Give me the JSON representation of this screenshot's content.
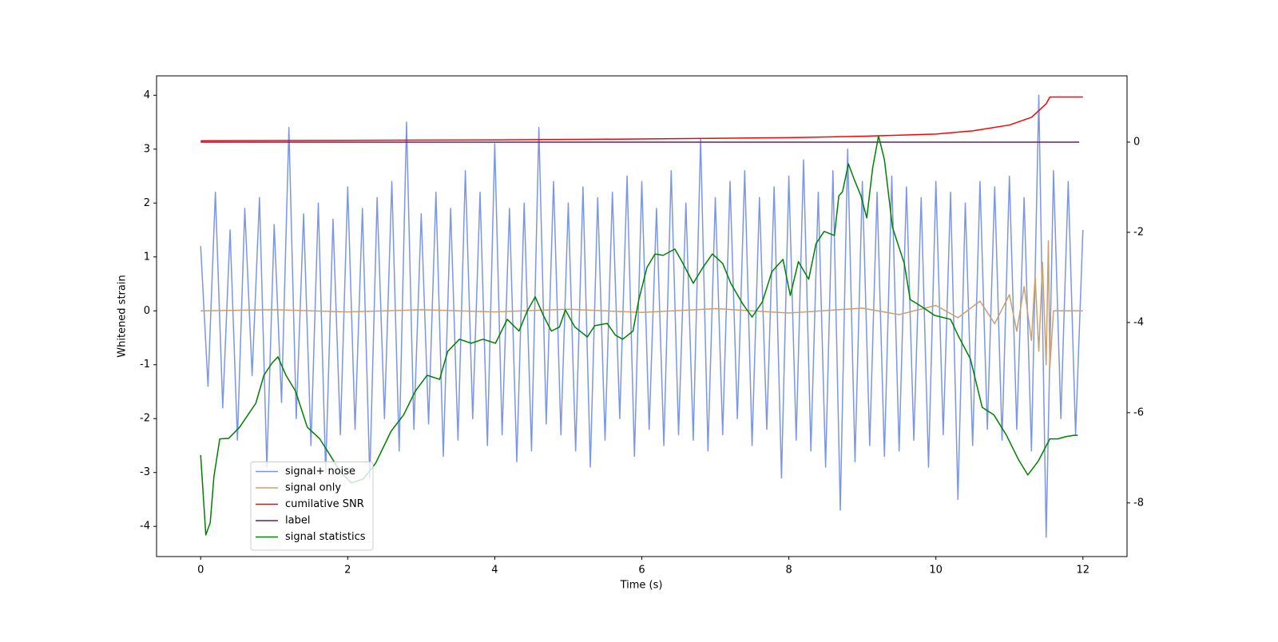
{
  "chart_data": {
    "type": "line",
    "xlabel": "Time (s)",
    "ylabel": "Whitened strain",
    "xlim": [
      -0.6,
      12.6
    ],
    "xticks": [
      0,
      2,
      4,
      6,
      8,
      10,
      12
    ],
    "ylim": [
      -4.56,
      4.36
    ],
    "yticks": [
      -4,
      -3,
      -2,
      -1,
      0,
      1,
      2,
      3,
      4
    ],
    "y2lim": [
      -9.19,
      1.47
    ],
    "y2ticks": [
      -8,
      -6,
      -4,
      -2,
      0
    ],
    "legend": "lower left",
    "series": [
      {
        "name": "signal+ noise",
        "color": "#7b96e8",
        "axis": "y",
        "x": [
          0,
          0.1,
          0.2,
          0.3,
          0.4,
          0.5,
          0.6,
          0.7,
          0.8,
          0.9,
          1,
          1.1,
          1.2,
          1.3,
          1.4,
          1.5,
          1.6,
          1.7,
          1.8,
          1.9,
          2,
          2.1,
          2.2,
          2.3,
          2.4,
          2.5,
          2.6,
          2.7,
          2.8,
          2.9,
          3,
          3.1,
          3.2,
          3.3,
          3.4,
          3.5,
          3.6,
          3.7,
          3.8,
          3.9,
          4,
          4.1,
          4.2,
          4.3,
          4.4,
          4.5,
          4.6,
          4.7,
          4.8,
          4.9,
          5,
          5.1,
          5.2,
          5.3,
          5.4,
          5.5,
          5.6,
          5.7,
          5.8,
          5.9,
          6,
          6.1,
          6.2,
          6.3,
          6.4,
          6.5,
          6.6,
          6.7,
          6.8,
          6.9,
          7,
          7.1,
          7.2,
          7.3,
          7.4,
          7.5,
          7.6,
          7.7,
          7.8,
          7.9,
          8,
          8.1,
          8.2,
          8.3,
          8.4,
          8.5,
          8.6,
          8.7,
          8.8,
          8.9,
          9,
          9.1,
          9.2,
          9.3,
          9.4,
          9.5,
          9.6,
          9.7,
          9.8,
          9.9,
          10,
          10.1,
          10.2,
          10.3,
          10.4,
          10.5,
          10.6,
          10.7,
          10.8,
          10.9,
          11,
          11.1,
          11.2,
          11.3,
          11.4,
          11.5,
          11.6,
          11.7,
          11.8,
          11.9,
          12
        ],
        "values": [
          1.2,
          -1.4,
          2.2,
          -1.8,
          1.5,
          -2.4,
          1.9,
          -1.2,
          2.1,
          -2.9,
          1.6,
          -1.7,
          3.4,
          -2.0,
          1.8,
          -2.5,
          2.0,
          -3.0,
          1.7,
          -2.3,
          2.3,
          -2.2,
          1.9,
          -3.1,
          2.1,
          -2.0,
          2.4,
          -2.6,
          3.5,
          -2.2,
          1.8,
          -2.1,
          2.2,
          -2.7,
          1.9,
          -2.4,
          2.6,
          -2.0,
          2.2,
          -2.5,
          3.1,
          -2.3,
          1.9,
          -2.8,
          2.0,
          -2.6,
          3.4,
          -2.1,
          2.4,
          -2.3,
          2.0,
          -2.6,
          2.3,
          -2.9,
          2.1,
          -2.4,
          2.2,
          -2.0,
          2.5,
          -2.7,
          2.4,
          -2.2,
          1.9,
          -2.5,
          2.6,
          -2.3,
          2.0,
          -2.4,
          3.2,
          -2.6,
          2.1,
          -2.3,
          2.4,
          -2.0,
          2.6,
          -2.5,
          2.1,
          -2.2,
          2.3,
          -3.1,
          2.5,
          -2.4,
          2.8,
          -2.6,
          2.2,
          -2.9,
          2.6,
          -3.7,
          3.0,
          -2.8,
          2.4,
          -2.5,
          2.2,
          -2.7,
          2.5,
          -2.6,
          2.3,
          -2.4,
          2.1,
          -2.9,
          2.4,
          -2.3,
          2.2,
          -3.5,
          2.0,
          -2.5,
          2.4,
          -2.2,
          2.3,
          -2.4,
          2.5,
          -2.2,
          2.1,
          -2.6,
          4.0,
          -4.2,
          2.6,
          -2.0,
          2.4,
          -2.3,
          1.5
        ]
      },
      {
        "name": "signal only",
        "color": "#c9a06e",
        "axis": "y",
        "x": [
          0,
          1,
          2,
          3,
          4,
          5,
          6,
          7,
          8,
          9,
          9.5,
          10,
          10.3,
          10.6,
          10.8,
          11.0,
          11.1,
          11.2,
          11.3,
          11.35,
          11.4,
          11.45,
          11.5,
          11.53,
          11.55,
          11.6,
          12
        ],
        "values": [
          0,
          0.02,
          -0.02,
          0.02,
          -0.02,
          0.03,
          -0.03,
          0.04,
          -0.04,
          0.05,
          -0.07,
          0.1,
          -0.13,
          0.18,
          -0.24,
          0.3,
          -0.38,
          0.45,
          -0.55,
          0.65,
          -0.75,
          0.9,
          -1.0,
          1.3,
          -1.05,
          0,
          0
        ]
      },
      {
        "name": "cumilative SNR",
        "color": "#ff0000",
        "axis": "y2",
        "x": [
          0,
          2,
          4,
          6,
          8,
          9,
          10,
          10.5,
          11,
          11.3,
          11.5,
          11.55,
          12
        ],
        "values": [
          0.03,
          0.04,
          0.05,
          0.07,
          0.1,
          0.13,
          0.18,
          0.25,
          0.38,
          0.55,
          0.85,
          1.0,
          1.0
        ]
      },
      {
        "name": "label",
        "color": "#6a1b6e",
        "axis": "y2",
        "x": [
          0,
          11.95
        ],
        "values": [
          0,
          0
        ]
      },
      {
        "name": "signal statistics",
        "color": "#008000",
        "axis": "y2",
        "x": [
          0,
          0.07,
          0.13,
          0.18,
          0.26,
          0.38,
          0.53,
          0.75,
          0.86,
          0.97,
          1.05,
          1.16,
          1.29,
          1.45,
          1.62,
          1.76,
          1.89,
          2.05,
          2.21,
          2.38,
          2.59,
          2.76,
          2.92,
          3.08,
          3.25,
          3.36,
          3.52,
          3.68,
          3.84,
          4.01,
          4.17,
          4.33,
          4.44,
          4.55,
          4.66,
          4.77,
          4.88,
          4.96,
          5.09,
          5.26,
          5.36,
          5.53,
          5.64,
          5.74,
          5.88,
          5.96,
          6.07,
          6.18,
          6.29,
          6.45,
          6.56,
          6.7,
          6.83,
          6.96,
          7.1,
          7.21,
          7.37,
          7.5,
          7.64,
          7.77,
          7.92,
          8.02,
          8.13,
          8.27,
          8.37,
          8.48,
          8.62,
          8.68,
          8.73,
          8.81,
          8.89,
          8.98,
          9.06,
          9.14,
          9.22,
          9.3,
          9.41,
          9.57,
          9.65,
          9.82,
          9.98,
          10.2,
          10.3,
          10.47,
          10.63,
          10.79,
          10.96,
          11.12,
          11.25,
          11.39,
          11.55,
          11.66,
          11.77,
          11.88,
          11.93
        ],
        "values": [
          -6.94,
          -8.71,
          -8.44,
          -7.42,
          -6.58,
          -6.57,
          -6.32,
          -5.79,
          -5.17,
          -4.9,
          -4.76,
          -5.17,
          -5.52,
          -6.32,
          -6.58,
          -6.94,
          -7.29,
          -7.56,
          -7.47,
          -7.12,
          -6.41,
          -6.05,
          -5.52,
          -5.17,
          -5.26,
          -4.64,
          -4.37,
          -4.46,
          -4.37,
          -4.46,
          -3.93,
          -4.19,
          -3.75,
          -3.43,
          -3.84,
          -4.19,
          -4.1,
          -3.72,
          -4.1,
          -4.32,
          -4.07,
          -4.02,
          -4.28,
          -4.37,
          -4.19,
          -3.49,
          -2.78,
          -2.48,
          -2.51,
          -2.37,
          -2.69,
          -3.13,
          -2.78,
          -2.48,
          -2.69,
          -3.13,
          -3.58,
          -3.88,
          -3.54,
          -2.87,
          -2.6,
          -3.4,
          -2.65,
          -3.04,
          -2.25,
          -1.98,
          -2.07,
          -1.19,
          -1.1,
          -0.48,
          -0.83,
          -1.19,
          -1.68,
          -0.57,
          0.14,
          -0.39,
          -1.89,
          -2.69,
          -3.49,
          -3.66,
          -3.84,
          -3.93,
          -4.28,
          -4.81,
          -5.88,
          -6.05,
          -6.5,
          -7.03,
          -7.38,
          -7.08,
          -6.58,
          -6.58,
          -6.53,
          -6.5,
          -6.5
        ]
      }
    ]
  }
}
